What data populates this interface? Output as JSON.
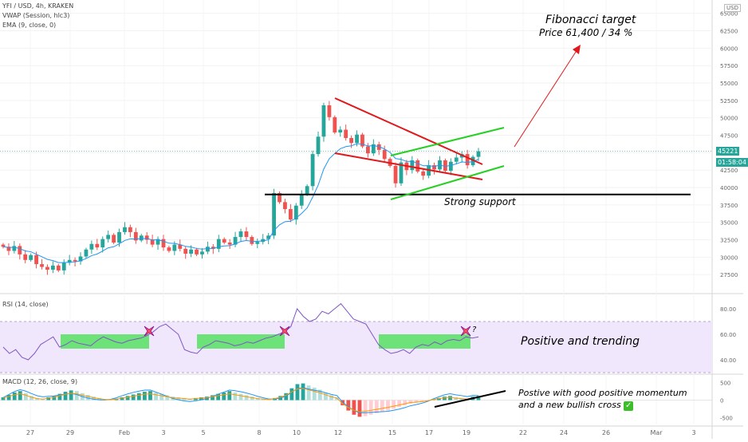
{
  "header": {
    "symbol_line": "YFI / USD, 4h, KRAKEN",
    "indicators": [
      "VWAP (Session, hlc3)",
      "EMA (9, close, 0)"
    ],
    "currency": "USD"
  },
  "price_badges": {
    "last_price": "45221",
    "countdown": "01:58:04",
    "last_value": 45221
  },
  "annotations": {
    "target_title": "Fibonacci target",
    "target_detail": "Price 61,400 / 34 %",
    "support": "Strong support",
    "rsi_note": "Positive and trending",
    "macd_note_line1": "Postive with good positive momentum",
    "macd_note_line2": "and a new bullish cross",
    "rsi_question": "?"
  },
  "rsi_panel": {
    "label": "RSI (14, close)",
    "ticks": [
      "80.00",
      "60.00",
      "40.00"
    ]
  },
  "macd_panel": {
    "label": "MACD (12, 26, close, 9)",
    "ticks": [
      "500",
      "0",
      "-500"
    ]
  },
  "colors": {
    "up": "#26a69a",
    "down": "#ef5350",
    "ema": "#2196f3",
    "trend_red": "#e0181b",
    "trend_green": "#25d022",
    "rsi_line": "#7e57c2",
    "rsi_band": "#f1e7fc",
    "highlight": "#55e061",
    "signal": "#ff9800"
  },
  "chart_data": {
    "type": "candlestick",
    "price_axis": {
      "ticks": [
        27500,
        30000,
        32500,
        35000,
        37500,
        40000,
        42500,
        45000,
        47500,
        50000,
        52500,
        55000,
        57500,
        60000,
        62500,
        65000
      ],
      "ylim": [
        25000,
        66000
      ]
    },
    "x_axis_labels": [
      "27",
      "29",
      "Feb",
      "3",
      "5",
      "8",
      "10",
      "12",
      "15",
      "17",
      "19",
      "22",
      "24",
      "26",
      "Mar",
      "3"
    ],
    "close_path": [
      31500,
      30900,
      31600,
      30400,
      29600,
      30300,
      29000,
      28600,
      28200,
      28800,
      28100,
      29200,
      29600,
      29400,
      30100,
      31100,
      31900,
      31400,
      32600,
      33200,
      32100,
      33600,
      34300,
      33600,
      32400,
      33100,
      32500,
      31800,
      32600,
      31400,
      30900,
      31800,
      31200,
      30500,
      31100,
      30400,
      30800,
      31500,
      31200,
      32600,
      32100,
      31800,
      32900,
      33700,
      32900,
      31900,
      32200,
      32600,
      33100,
      39200,
      37900,
      36900,
      35400,
      37400,
      39000,
      40200,
      44800,
      47300,
      51800,
      50100,
      47900,
      48300,
      47100,
      46400,
      47600,
      45900,
      44900,
      46200,
      45400,
      44100,
      43100,
      40600,
      43600,
      42500,
      43900,
      42300,
      41700,
      43200,
      42600,
      43900,
      42400,
      43700,
      44300,
      44800,
      43200,
      44400,
      45200
    ],
    "rsi": {
      "ylim": [
        30,
        90
      ],
      "band": [
        30,
        70
      ],
      "values": [
        50,
        45,
        48,
        42,
        40,
        45,
        52,
        55,
        58,
        50,
        52,
        55,
        53,
        52,
        51,
        55,
        58,
        56,
        54,
        53,
        55,
        56,
        57,
        59,
        62,
        66,
        68,
        64,
        60,
        48,
        46,
        45,
        50,
        52,
        55,
        54,
        53,
        51,
        52,
        54,
        53,
        55,
        57,
        58,
        60,
        62,
        66,
        80,
        74,
        70,
        72,
        78,
        76,
        80,
        84,
        78,
        72,
        70,
        68,
        60,
        52,
        48,
        45,
        46,
        48,
        45,
        50,
        52,
        51,
        54,
        52,
        55,
        56,
        55,
        58,
        57,
        58
      ]
    },
    "macd": {
      "ylim": [
        -700,
        700
      ],
      "histogram": [
        80,
        150,
        220,
        260,
        200,
        120,
        60,
        40,
        80,
        120,
        180,
        240,
        280,
        260,
        200,
        150,
        100,
        60,
        30,
        20,
        40,
        80,
        120,
        160,
        200,
        240,
        260,
        220,
        180,
        140,
        100,
        80,
        60,
        40,
        60,
        80,
        100,
        140,
        180,
        220,
        260,
        220,
        180,
        140,
        100,
        60,
        40,
        30,
        60,
        120,
        200,
        340,
        460,
        480,
        420,
        360,
        300,
        220,
        140,
        80,
        -150,
        -300,
        -420,
        -480,
        -460,
        -420,
        -380,
        -340,
        -300,
        -250,
        -200,
        -150,
        -100,
        -80,
        -60,
        -30,
        20,
        60,
        100,
        120,
        80,
        60,
        40,
        100,
        120
      ]
    },
    "levels": {
      "strong_support": 39000,
      "fibonacci_target": 61400,
      "target_gain_pct": 34
    }
  }
}
